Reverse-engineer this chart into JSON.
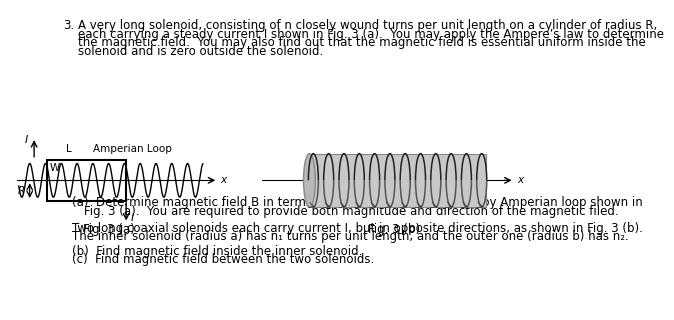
{
  "background_color": "#ffffff",
  "number": "3.",
  "p1_lines": [
    "A very long solenoid, consisting of n closely wound turns per unit length on a cylinder of radius R,",
    "each carrying a steady current I shown in Fig. 3 (a).  You may apply the Ampere’s law to determine",
    "the magnetic field.  You may also find out that the magnetic field is essential uniform inside the",
    "solenoid and is zero outside the solenoid."
  ],
  "fig3a_label": "Fig. 3 (a)",
  "fig3b_label": "Fig. 3 (b)",
  "part_a_line1": "(a)  Determine magnetic field B in terms of I for r < R.  You may employ Amperian loop shown in",
  "part_a_line2": "Fig. 3 (a).  You are required to provide both magnitude and direction of the magnetic filed.",
  "p2_line1": "Two long coaxial solenoids each carry current I, but in opposite directions, as shown in Fig. 3 (b).",
  "p2_line2": "The inner solenoid (radius a) has n₁ turns per unit length, and the outer one (radius b) has n₂.",
  "part_b": "(b)  Find magnetic field inside the inner solenoid.",
  "part_c": "(c)  Find magnetic field between the two solenoids.",
  "text_color": "#000000",
  "font_size_body": 8.5,
  "amperian_label": "Amperian Loop",
  "label_L": "L",
  "label_W": "W",
  "label_R": "R",
  "label_I": "I",
  "label_x": "x"
}
